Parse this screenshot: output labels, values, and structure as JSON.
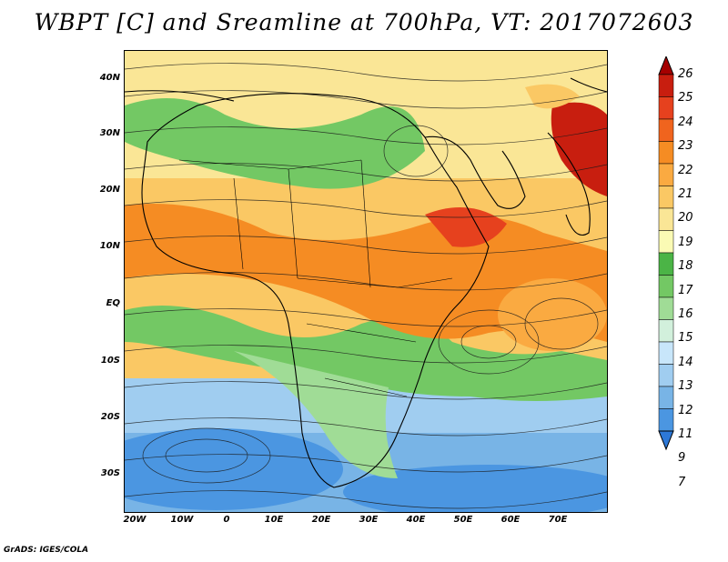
{
  "title": "WBPT [C] and Sreamline at 700hPa, VT: 2017072603",
  "credit": "GrADS: IGES/COLA",
  "lat_labels": [
    "40N",
    "30N",
    "20N",
    "10N",
    "EQ",
    "10S",
    "20S",
    "30S"
  ],
  "lon_labels": [
    "20W",
    "10W",
    "0",
    "10E",
    "20E",
    "30E",
    "40E",
    "50E",
    "60E",
    "70E"
  ],
  "colorbar": {
    "labels": [
      "26",
      "25",
      "24",
      "23",
      "22",
      "21",
      "20",
      "19",
      "18",
      "17",
      "16",
      "15",
      "14",
      "13",
      "12",
      "11",
      "9",
      "7"
    ],
    "colors": [
      "#a50000",
      "#c81e0f",
      "#e6411e",
      "#f0641e",
      "#f58c23",
      "#faaa41",
      "#fac864",
      "#fae696",
      "#fafab4",
      "#4bb446",
      "#73c864",
      "#a0dc96",
      "#d2f0dc",
      "#c8e6fa",
      "#a0cdf0",
      "#78b4e6",
      "#4b96e1",
      "#2d78d7"
    ]
  },
  "regions": {
    "cold_south": "#78b4e6",
    "cool": "#a0cdf0",
    "green": "#73c864",
    "warm": "#fac864",
    "orange": "#f58c23",
    "hot": "#e6411e"
  }
}
